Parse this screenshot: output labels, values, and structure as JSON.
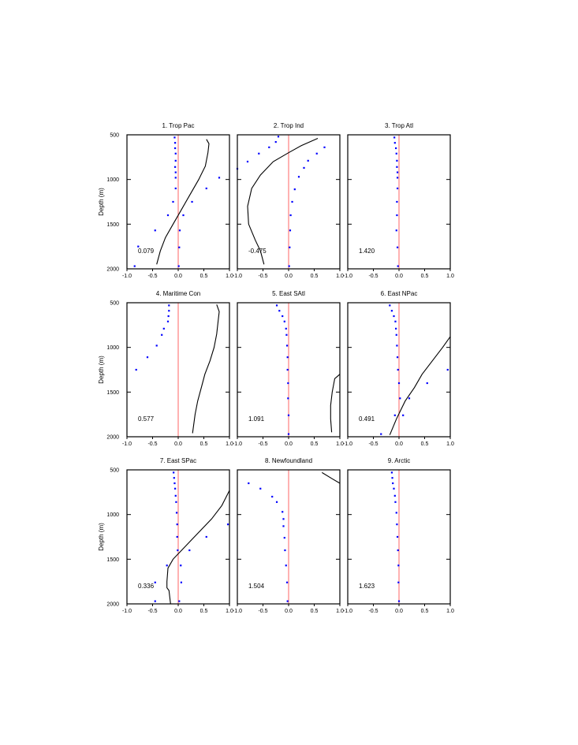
{
  "chart_data": {
    "type": "scatter",
    "y_axis_label": "Depth (m)",
    "xlim": [
      -1.0,
      1.0
    ],
    "ylim": [
      2000,
      500
    ],
    "y_reversed": true,
    "x_ticks": [
      "-1.0",
      "-0.5",
      "0.0",
      "0.5",
      "1.0"
    ],
    "y_ticks": [
      "500",
      "1000",
      "1500",
      "2000"
    ],
    "colors": {
      "zero_line": "#ff6666",
      "points": "#0000ff",
      "curve": "#000000"
    },
    "panels": [
      {
        "title": "1. Trop Pac",
        "value_label": "0.079",
        "points": [
          [
            -0.07,
            530
          ],
          [
            -0.06,
            590
          ],
          [
            -0.06,
            650
          ],
          [
            -0.05,
            710
          ],
          [
            -0.05,
            790
          ],
          [
            -0.06,
            860
          ],
          [
            -0.05,
            920
          ],
          [
            0.8,
            980
          ],
          [
            -0.05,
            980
          ],
          [
            -0.05,
            1100
          ],
          [
            0.55,
            1100
          ],
          [
            -0.1,
            1250
          ],
          [
            0.27,
            1250
          ],
          [
            -0.2,
            1400
          ],
          [
            0.1,
            1400
          ],
          [
            -0.45,
            1570
          ],
          [
            0.03,
            1570
          ],
          [
            -0.78,
            1750
          ],
          [
            0.02,
            1760
          ],
          [
            -0.85,
            1970
          ],
          [
            0.01,
            1970
          ]
        ],
        "curve": [
          [
            0.55,
            550
          ],
          [
            0.6,
            600
          ],
          [
            0.58,
            700
          ],
          [
            0.53,
            850
          ],
          [
            0.4,
            1000
          ],
          [
            0.2,
            1200
          ],
          [
            0.05,
            1350
          ],
          [
            -0.1,
            1500
          ],
          [
            -0.25,
            1650
          ],
          [
            -0.35,
            1800
          ],
          [
            -0.42,
            1950
          ]
        ]
      },
      {
        "title": "2. Trop Ind",
        "value_label": "-0.475",
        "points": [
          [
            -0.2,
            520
          ],
          [
            -0.25,
            580
          ],
          [
            -0.38,
            640
          ],
          [
            -0.58,
            710
          ],
          [
            -0.8,
            800
          ],
          [
            -1.0,
            880
          ],
          [
            0.7,
            640
          ],
          [
            0.55,
            710
          ],
          [
            0.38,
            790
          ],
          [
            0.3,
            870
          ],
          [
            0.2,
            970
          ],
          [
            0.12,
            1110
          ],
          [
            0.07,
            1250
          ],
          [
            0.04,
            1400
          ],
          [
            0.03,
            1570
          ],
          [
            0.02,
            1760
          ],
          [
            0.01,
            1970
          ]
        ],
        "curve": [
          [
            0.57,
            540
          ],
          [
            0.25,
            620
          ],
          [
            0.0,
            700
          ],
          [
            -0.3,
            800
          ],
          [
            -0.55,
            950
          ],
          [
            -0.72,
            1100
          ],
          [
            -0.8,
            1300
          ],
          [
            -0.78,
            1500
          ],
          [
            -0.65,
            1680
          ],
          [
            -0.55,
            1800
          ],
          [
            -0.48,
            1950
          ]
        ]
      },
      {
        "title": "3. Trop Atl",
        "value_label": "1.420",
        "points": [
          [
            -0.09,
            530
          ],
          [
            -0.08,
            590
          ],
          [
            -0.06,
            650
          ],
          [
            -0.05,
            710
          ],
          [
            -0.04,
            790
          ],
          [
            -0.04,
            860
          ],
          [
            -0.03,
            920
          ],
          [
            -0.03,
            980
          ],
          [
            -0.03,
            1100
          ],
          [
            -0.04,
            1250
          ],
          [
            -0.04,
            1400
          ],
          [
            -0.05,
            1570
          ],
          [
            -0.03,
            1760
          ],
          [
            -0.02,
            1970
          ]
        ],
        "curve": []
      },
      {
        "title": "4. Maritime Con",
        "value_label": "0.577",
        "points": [
          [
            -0.18,
            530
          ],
          [
            -0.18,
            590
          ],
          [
            -0.19,
            650
          ],
          [
            -0.2,
            710
          ],
          [
            -0.28,
            790
          ],
          [
            -0.32,
            860
          ],
          [
            -0.42,
            980
          ],
          [
            -0.6,
            1110
          ],
          [
            -0.82,
            1250
          ]
        ],
        "curve": [
          [
            0.75,
            520
          ],
          [
            0.8,
            600
          ],
          [
            0.78,
            700
          ],
          [
            0.75,
            850
          ],
          [
            0.7,
            1000
          ],
          [
            0.62,
            1150
          ],
          [
            0.52,
            1300
          ],
          [
            0.45,
            1450
          ],
          [
            0.38,
            1600
          ],
          [
            0.33,
            1750
          ],
          [
            0.28,
            1960
          ]
        ]
      },
      {
        "title": "5. East SAtl",
        "value_label": "1.091",
        "points": [
          [
            -0.23,
            530
          ],
          [
            -0.18,
            590
          ],
          [
            -0.12,
            650
          ],
          [
            -0.08,
            710
          ],
          [
            -0.05,
            790
          ],
          [
            -0.04,
            860
          ],
          [
            -0.03,
            980
          ],
          [
            -0.02,
            1110
          ],
          [
            -0.02,
            1250
          ],
          [
            -0.01,
            1400
          ],
          [
            -0.01,
            1570
          ],
          [
            0.0,
            1760
          ],
          [
            0.0,
            1970
          ]
        ],
        "curve": [
          [
            1.0,
            1300
          ],
          [
            0.9,
            1350
          ],
          [
            0.85,
            1500
          ],
          [
            0.82,
            1650
          ],
          [
            0.82,
            1800
          ],
          [
            0.84,
            1950
          ]
        ]
      },
      {
        "title": "6. East NPac",
        "value_label": "0.491",
        "points": [
          [
            -0.18,
            530
          ],
          [
            -0.14,
            590
          ],
          [
            -0.1,
            650
          ],
          [
            -0.07,
            710
          ],
          [
            -0.06,
            790
          ],
          [
            -0.05,
            860
          ],
          [
            -0.04,
            980
          ],
          [
            -0.03,
            1110
          ],
          [
            0.95,
            1250
          ],
          [
            -0.02,
            1250
          ],
          [
            0.55,
            1400
          ],
          [
            0.0,
            1400
          ],
          [
            0.2,
            1570
          ],
          [
            0.02,
            1570
          ],
          [
            0.08,
            1760
          ],
          [
            -0.08,
            1760
          ],
          [
            -0.35,
            1970
          ]
        ],
        "curve": [
          [
            1.0,
            880
          ],
          [
            0.85,
            1000
          ],
          [
            0.65,
            1150
          ],
          [
            0.45,
            1300
          ],
          [
            0.3,
            1450
          ],
          [
            0.12,
            1600
          ],
          [
            -0.05,
            1800
          ],
          [
            -0.18,
            1980
          ]
        ]
      },
      {
        "title": "7. East SPac",
        "value_label": "0.336",
        "points": [
          [
            -0.09,
            530
          ],
          [
            -0.08,
            590
          ],
          [
            -0.07,
            650
          ],
          [
            -0.06,
            710
          ],
          [
            -0.05,
            790
          ],
          [
            -0.04,
            860
          ],
          [
            -0.03,
            980
          ],
          [
            -0.02,
            1110
          ],
          [
            0.97,
            1110
          ],
          [
            -0.02,
            1250
          ],
          [
            0.55,
            1250
          ],
          [
            -0.01,
            1400
          ],
          [
            0.22,
            1400
          ],
          [
            -0.22,
            1570
          ],
          [
            0.05,
            1570
          ],
          [
            -0.45,
            1760
          ],
          [
            0.06,
            1760
          ],
          [
            -0.45,
            1970
          ],
          [
            0.02,
            1970
          ]
        ],
        "curve": [
          [
            1.0,
            730
          ],
          [
            0.85,
            900
          ],
          [
            0.65,
            1050
          ],
          [
            0.4,
            1200
          ],
          [
            0.15,
            1350
          ],
          [
            -0.1,
            1500
          ],
          [
            -0.2,
            1600
          ],
          [
            -0.22,
            1750
          ],
          [
            -0.22,
            1820
          ],
          [
            -0.18,
            1850
          ],
          [
            -0.15,
            2000
          ]
        ]
      },
      {
        "title": "8. Newfoundland",
        "value_label": "1.504",
        "points": [
          [
            -0.78,
            650
          ],
          [
            -0.55,
            710
          ],
          [
            -0.32,
            800
          ],
          [
            -0.23,
            860
          ],
          [
            -0.12,
            970
          ],
          [
            -0.1,
            1050
          ],
          [
            -0.1,
            1130
          ],
          [
            -0.08,
            1260
          ],
          [
            -0.07,
            1400
          ],
          [
            -0.05,
            1570
          ],
          [
            -0.03,
            1760
          ],
          [
            -0.02,
            1970
          ]
        ],
        "curve": [
          [
            0.65,
            530
          ],
          [
            0.85,
            600
          ],
          [
            1.0,
            650
          ]
        ]
      },
      {
        "title": "9. Arctic",
        "value_label": "1.623",
        "points": [
          [
            -0.14,
            530
          ],
          [
            -0.13,
            590
          ],
          [
            -0.12,
            650
          ],
          [
            -0.1,
            710
          ],
          [
            -0.08,
            790
          ],
          [
            -0.07,
            860
          ],
          [
            -0.05,
            980
          ],
          [
            -0.04,
            1110
          ],
          [
            -0.03,
            1250
          ],
          [
            -0.02,
            1400
          ],
          [
            -0.01,
            1570
          ],
          [
            -0.01,
            1760
          ],
          [
            0.0,
            1970
          ]
        ],
        "curve": []
      }
    ]
  }
}
